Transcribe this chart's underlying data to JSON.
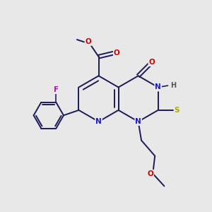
{
  "bg_color": "#e8e8e8",
  "bond_color": "#1a1a5a",
  "atom_colors": {
    "N": "#1a1acc",
    "O": "#cc0000",
    "F": "#cc00cc",
    "S": "#aaaa00",
    "H": "#555555",
    "C": "#1a1a5a"
  },
  "figsize": [
    3.0,
    3.0
  ],
  "dpi": 100
}
